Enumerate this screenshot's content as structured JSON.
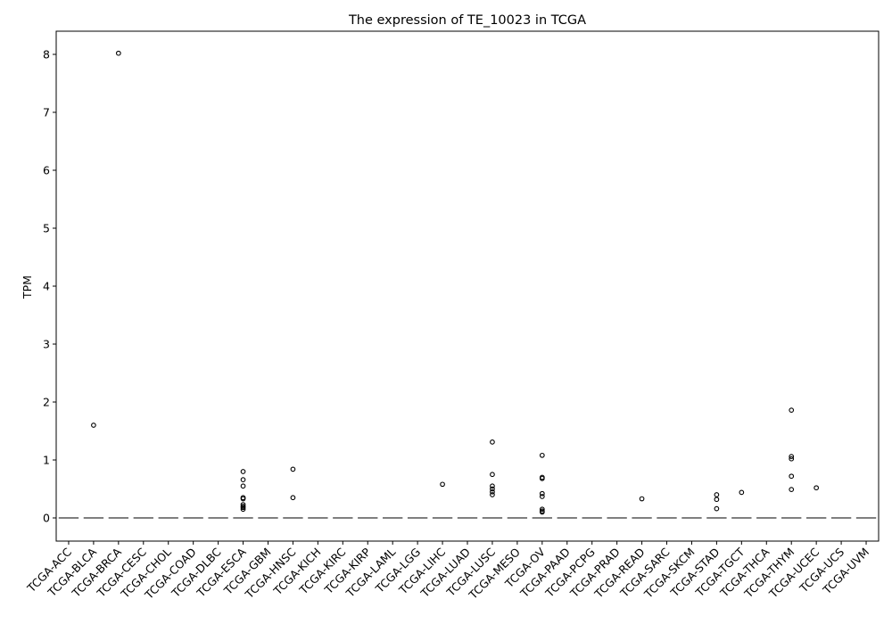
{
  "chart_data": {
    "type": "box",
    "title": "The expression of TE_10023 in TCGA",
    "xlabel": "",
    "ylabel": "TPM",
    "ylim": [
      -0.4,
      8.4
    ],
    "yticks": [
      0,
      1,
      2,
      3,
      4,
      5,
      6,
      7,
      8
    ],
    "categories": [
      "TCGA-ACC",
      "TCGA-BLCA",
      "TCGA-BRCA",
      "TCGA-CESC",
      "TCGA-CHOL",
      "TCGA-COAD",
      "TCGA-DLBC",
      "TCGA-ESCA",
      "TCGA-GBM",
      "TCGA-HNSC",
      "TCGA-KICH",
      "TCGA-KIRC",
      "TCGA-KIRP",
      "TCGA-LAML",
      "TCGA-LGG",
      "TCGA-LIHC",
      "TCGA-LUAD",
      "TCGA-LUSC",
      "TCGA-MESO",
      "TCGA-OV",
      "TCGA-PAAD",
      "TCGA-PCPG",
      "TCGA-PRAD",
      "TCGA-READ",
      "TCGA-SARC",
      "TCGA-SKCM",
      "TCGA-STAD",
      "TCGA-TGCT",
      "TCGA-THCA",
      "TCGA-THYM",
      "TCGA-UCEC",
      "TCGA-UCS",
      "TCGA-UVM"
    ],
    "median": 0,
    "outliers": {
      "TCGA-BLCA": [
        1.6
      ],
      "TCGA-BRCA": [
        8.02
      ],
      "TCGA-ESCA": [
        0.8,
        0.66,
        0.55,
        0.35,
        0.33,
        0.23,
        0.2,
        0.18,
        0.15
      ],
      "TCGA-HNSC": [
        0.84,
        0.35
      ],
      "TCGA-LIHC": [
        0.58
      ],
      "TCGA-LUSC": [
        1.31,
        0.75,
        0.55,
        0.5,
        0.45,
        0.4
      ],
      "TCGA-OV": [
        1.08,
        0.7,
        0.68,
        0.42,
        0.37,
        0.15,
        0.12,
        0.1
      ],
      "TCGA-READ": [
        0.33
      ],
      "TCGA-STAD": [
        0.4,
        0.32,
        0.16
      ],
      "TCGA-TGCT": [
        0.44
      ],
      "TCGA-THYM": [
        1.86,
        1.06,
        1.02,
        0.72,
        0.49
      ],
      "TCGA-UCEC": [
        0.52
      ]
    },
    "colors": {
      "median": "#555555",
      "outlier": "#000000",
      "axis": "#000000"
    },
    "grid": false,
    "legend": "none"
  }
}
